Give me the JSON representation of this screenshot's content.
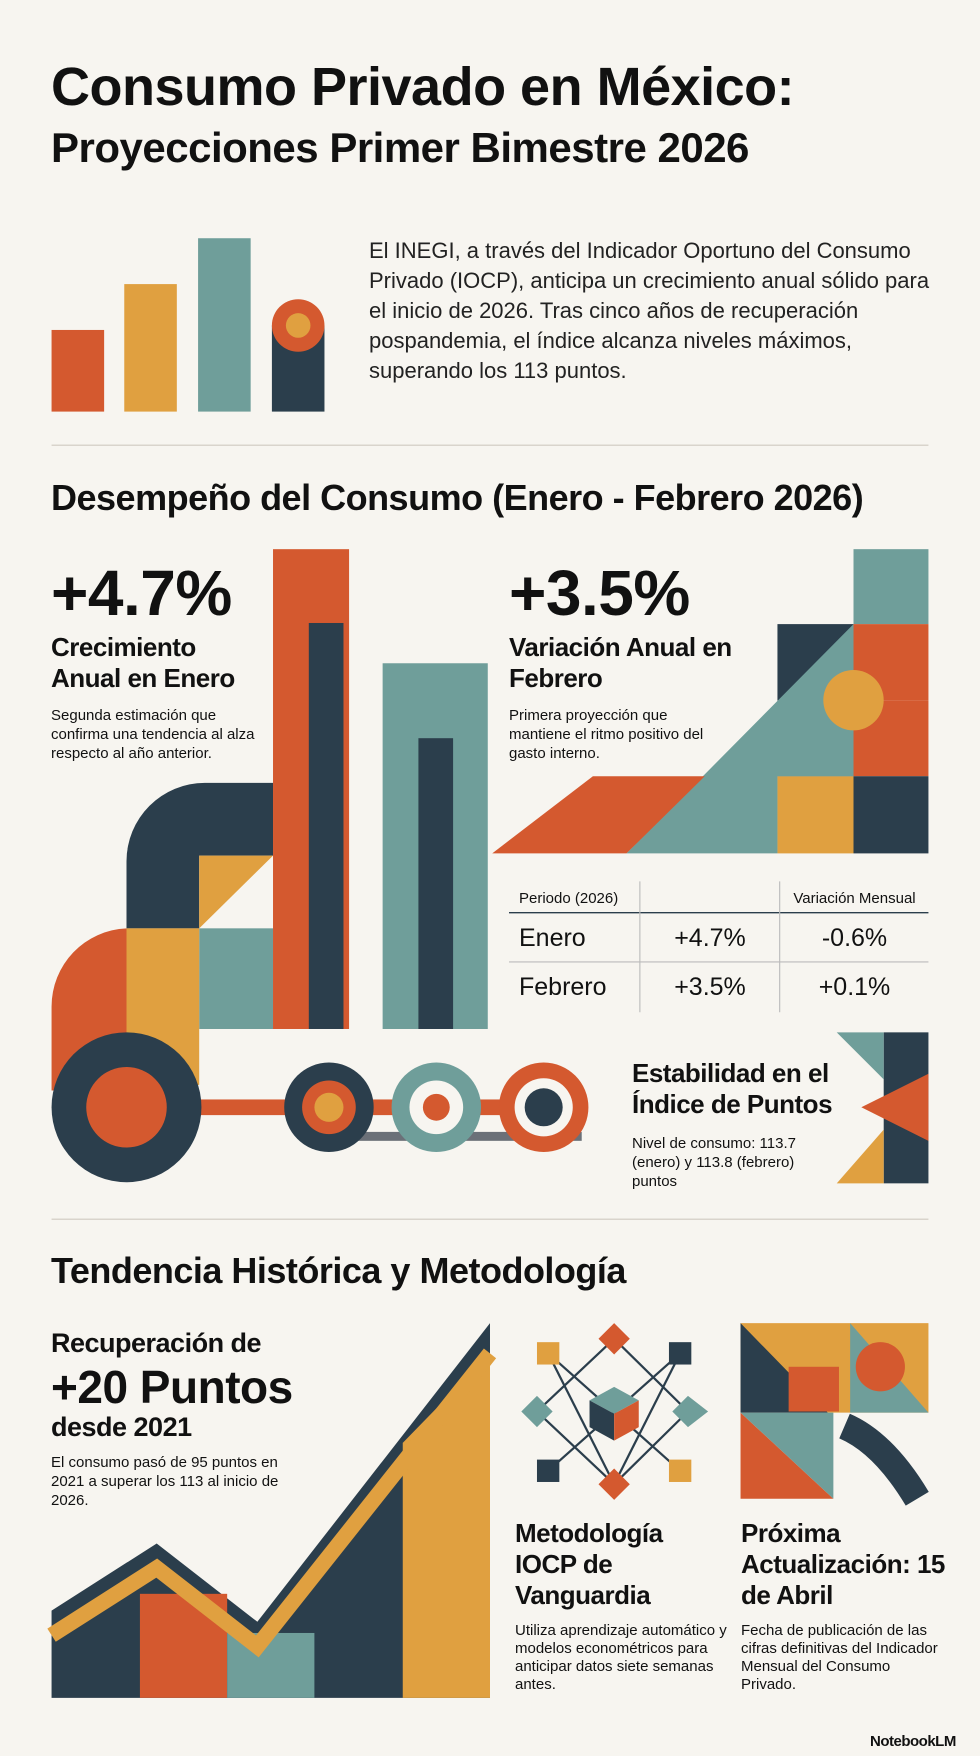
{
  "header": {
    "title_line1": "Consumo Privado en México:",
    "title_line2": "Proyecciones Primer Bimestre 2026",
    "intro": "El INEGI, a través del Indicador Oportuno del Consumo Privado (IOCP), anticipa un crecimiento anual sólido para el inicio de 2026. Tras cinco años de recuperación pospandemia, el índice alcanza niveles máximos, superando los 113 puntos."
  },
  "performance": {
    "heading": "Desempeño del Consumo (Enero - Febrero 2026)",
    "stats": [
      {
        "value": "+4.7%",
        "label": "Crecimiento Anual en Enero",
        "description": "Segunda estimación que confirma una tendencia al alza respecto al año anterior."
      },
      {
        "value": "+3.5%",
        "label": "Variación Anual en Febrero",
        "description": "Primera proyección que mantiene el ritmo positivo del gasto interno."
      }
    ],
    "table": {
      "header_period": "Periodo (2026)",
      "header_monthly": "Variación Mensual",
      "rows": [
        [
          "Enero",
          "+4.7%",
          "-0.6%"
        ],
        [
          "Febrero",
          "+3.5%",
          "+0.1%"
        ]
      ]
    },
    "stability": {
      "title": "Estabilidad en el Índice de Puntos",
      "description": "Nivel de consumo: 113.7 (enero) y 113.8 (febrero) puntos"
    }
  },
  "history": {
    "heading": "Tendencia Histórica y Metodología",
    "recovery": {
      "line1": "Recuperación de",
      "highlight": "+20 Puntos",
      "line3": "desde 2021",
      "description": "El consumo pasó de 95 puntos en 2021 a superar los 113 al inicio de 2026."
    },
    "methodology": {
      "title": "Metodología IOCP de Vanguardia",
      "description": "Utiliza aprendizaje automático y modelos econométricos para anticipar datos siete semanas antes."
    },
    "next_update": {
      "title": "Próxima Actualización: 15 de Abril",
      "description": "Fecha de publicación de las cifras definitivas del Indicador Mensual del Consumo Privado."
    }
  },
  "footer": {
    "brand": "NotebookLM"
  }
}
